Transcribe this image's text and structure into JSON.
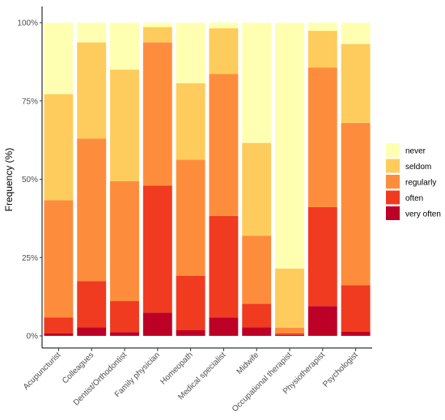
{
  "chart_data": {
    "type": "bar",
    "stacked": true,
    "xlabel": "",
    "ylabel": "Frequency (%)",
    "ylim": [
      0,
      100
    ],
    "yticks": [
      "0%",
      "25%",
      "50%",
      "75%",
      "100%"
    ],
    "grid": false,
    "legend_position": "right",
    "categories": [
      "Acupuncturist",
      "Colleagues",
      "Dentist/Orthodontist",
      "Family physician",
      "Homeopath",
      "Medical specialist",
      "Midwife",
      "Occupational therapist",
      "Physiotherapist",
      "Psychologist"
    ],
    "series": [
      {
        "name": "very often",
        "color": "#bd0026",
        "values": [
          0.8,
          2.7,
          1.2,
          7.4,
          1.8,
          5.9,
          2.7,
          0.3,
          9.5,
          1.3
        ]
      },
      {
        "name": "often",
        "color": "#f03b20",
        "values": [
          5.1,
          14.8,
          9.9,
          40.6,
          17.4,
          32.4,
          7.5,
          0.5,
          31.6,
          14.9
        ]
      },
      {
        "name": "regularly",
        "color": "#fd8d3c",
        "values": [
          37.4,
          45.5,
          38.3,
          45.7,
          37.0,
          45.3,
          21.8,
          1.8,
          44.6,
          51.8
        ]
      },
      {
        "name": "seldom",
        "color": "#fecc5c",
        "values": [
          33.9,
          30.7,
          35.6,
          4.9,
          24.5,
          14.6,
          29.6,
          18.9,
          11.7,
          25.2
        ]
      },
      {
        "name": "never",
        "color": "#ffffb2",
        "values": [
          22.8,
          6.3,
          15.0,
          1.4,
          19.3,
          1.8,
          38.4,
          78.5,
          2.6,
          6.8
        ]
      }
    ],
    "legend_order": [
      "never",
      "seldom",
      "regularly",
      "often",
      "very often"
    ]
  }
}
